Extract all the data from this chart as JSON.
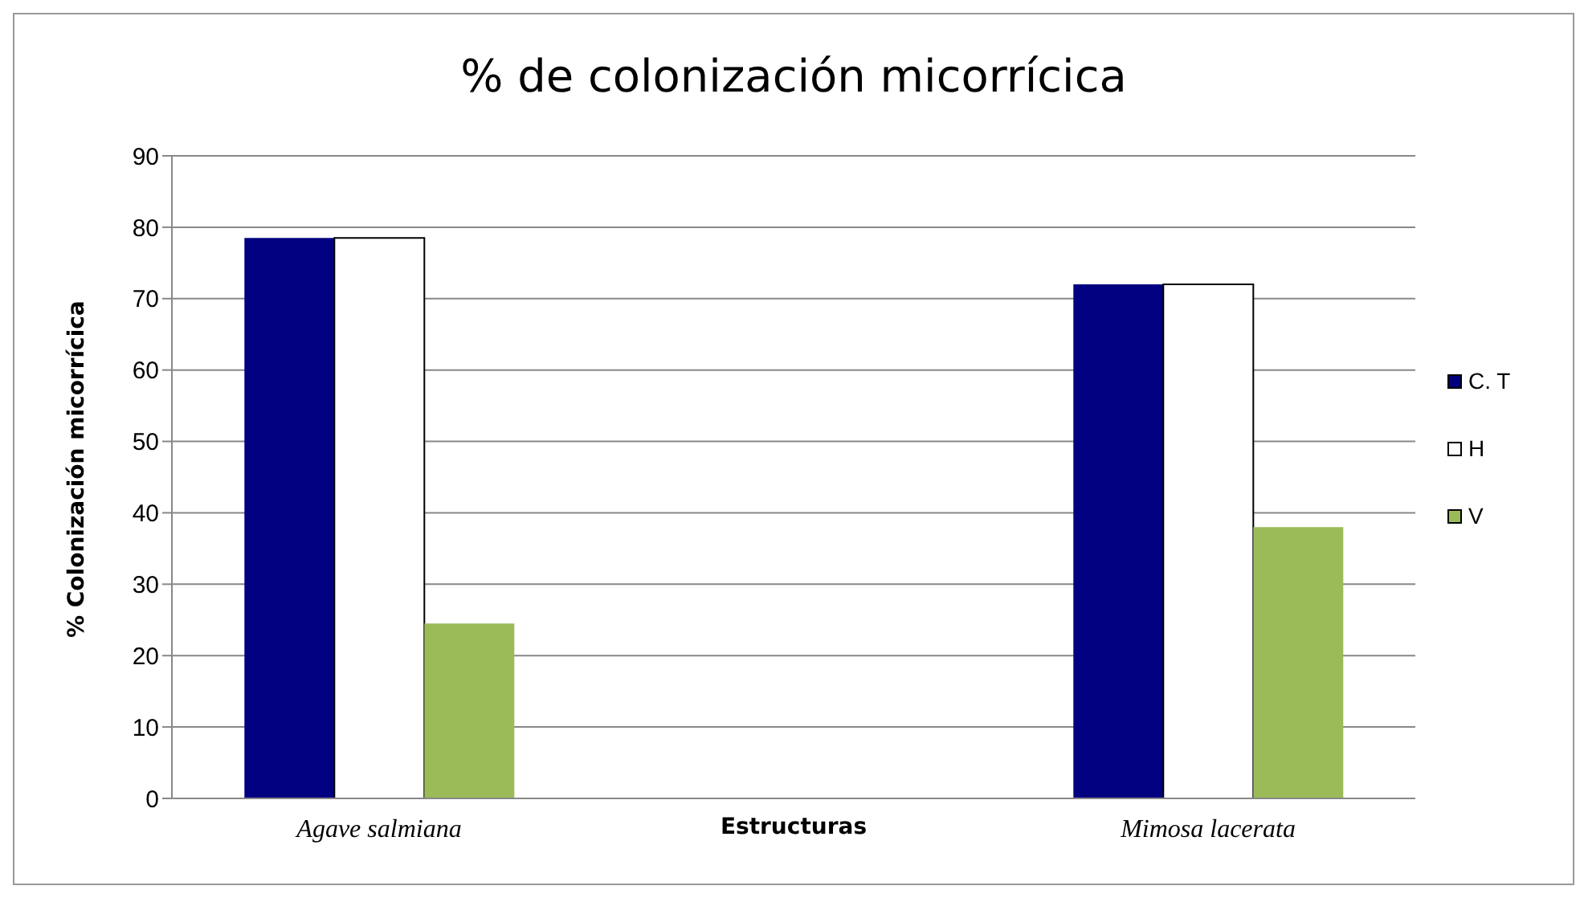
{
  "chart_data": {
    "type": "bar",
    "title": "% de colonización micorrícica",
    "xlabel": "Estructuras",
    "ylabel": "% Colonización micorrícica",
    "categories": [
      "Agave salmiana",
      null,
      "Mimosa lacerata"
    ],
    "series": [
      {
        "name": "C. T",
        "color": "#000080",
        "values": [
          78.5,
          null,
          72
        ]
      },
      {
        "name": "H",
        "color": "#ffffff",
        "values": [
          78.5,
          null,
          72
        ]
      },
      {
        "name": "V",
        "color": "#9bbb59",
        "values": [
          24.5,
          null,
          38
        ]
      }
    ],
    "ylim": [
      0,
      90
    ],
    "yticks": [
      0,
      10,
      20,
      30,
      40,
      50,
      60,
      70,
      80,
      90
    ],
    "grid": "y",
    "legend": "right"
  }
}
